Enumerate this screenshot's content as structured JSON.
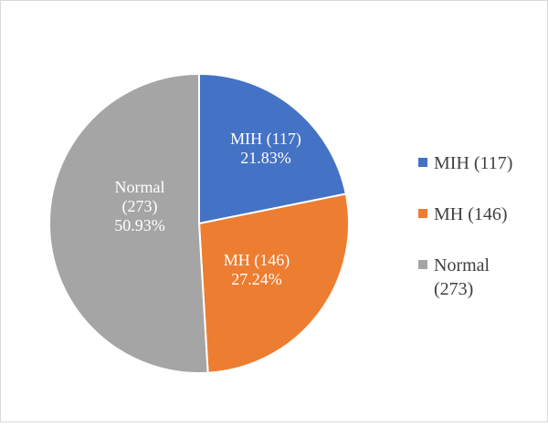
{
  "chart_data": {
    "type": "pie",
    "title": "",
    "slices": [
      {
        "name": "MIH (117)",
        "value": 117,
        "percent_label": "21.83%",
        "inner_label_lines": [
          "MIH (117)",
          "21.83%"
        ],
        "color": "#4472c4"
      },
      {
        "name": "MH (146)",
        "value": 146,
        "percent_label": "27.24%",
        "inner_label_lines": [
          "MH (146)",
          "27.24%"
        ],
        "color": "#ed7d31"
      },
      {
        "name": "Normal (273)",
        "value": 273,
        "percent_label": "50.93%",
        "inner_label_lines": [
          "Normal",
          "(273)",
          "50.93%"
        ],
        "color": "#a5a5a5"
      }
    ],
    "legend": {
      "placement": "right",
      "entries": [
        {
          "lines": [
            "MIH (117)"
          ],
          "color": "#4472c4"
        },
        {
          "lines": [
            "MH (146)"
          ],
          "color": "#ed7d31"
        },
        {
          "lines": [
            "Normal",
            "(273)"
          ],
          "color": "#a5a5a5"
        }
      ]
    }
  }
}
